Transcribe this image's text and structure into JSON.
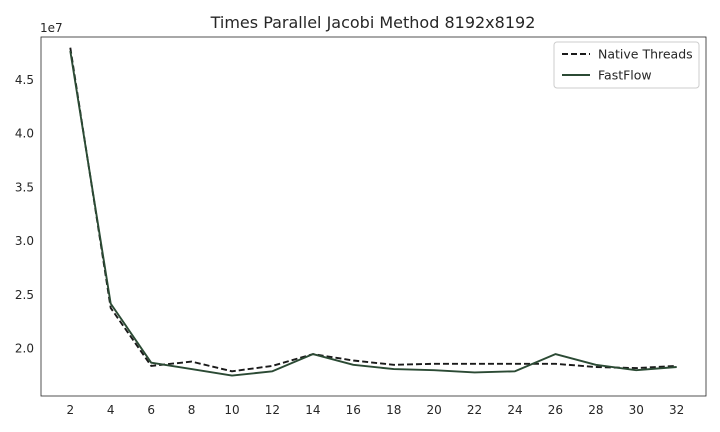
{
  "chart_data": {
    "type": "line",
    "title": "Times Parallel Jacobi Method 8192x8192",
    "xlabel": "",
    "ylabel": "",
    "y_offset_label": "1e7",
    "x": [
      2,
      4,
      6,
      8,
      10,
      12,
      14,
      16,
      18,
      20,
      22,
      24,
      26,
      28,
      30,
      32
    ],
    "xticks": [
      "2",
      "4",
      "6",
      "8",
      "10",
      "12",
      "14",
      "16",
      "18",
      "20",
      "22",
      "24",
      "26",
      "28",
      "30",
      "32"
    ],
    "yticks": [
      2.0,
      2.5,
      3.0,
      3.5,
      4.0,
      4.5
    ],
    "ytick_labels": [
      "2.0",
      "2.5",
      "3.0",
      "3.5",
      "4.0",
      "4.5"
    ],
    "xlim": [
      0.55,
      33.45
    ],
    "ylim": [
      1.56,
      4.9
    ],
    "y_scale_note": "values in units of 1e7",
    "grid": false,
    "legend_position": "top-right",
    "series": [
      {
        "name": "Native Threads",
        "style": "dashed",
        "color": "#1a1a1a",
        "values": [
          4.8,
          2.38,
          1.84,
          1.88,
          1.79,
          1.84,
          1.95,
          1.89,
          1.85,
          1.86,
          1.86,
          1.86,
          1.86,
          1.83,
          1.82,
          1.84
        ]
      },
      {
        "name": "FastFlow",
        "style": "solid",
        "color": "#2b4a34",
        "values": [
          4.77,
          2.42,
          1.87,
          1.81,
          1.75,
          1.79,
          1.95,
          1.85,
          1.81,
          1.8,
          1.78,
          1.79,
          1.95,
          1.85,
          1.8,
          1.83
        ]
      }
    ]
  }
}
